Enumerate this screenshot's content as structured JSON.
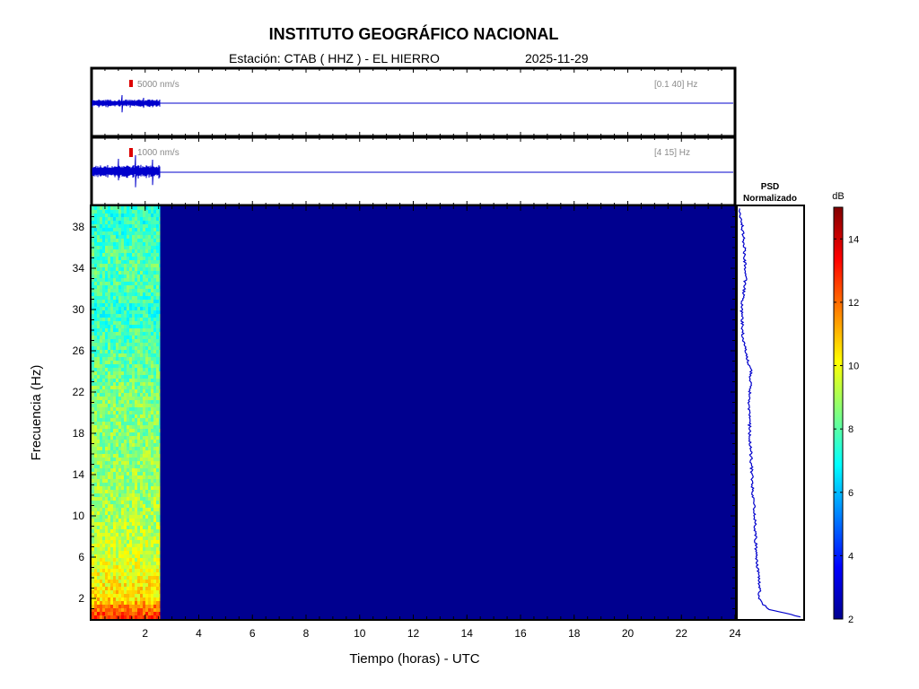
{
  "title": "INSTITUTO GEOGRÁFICO NACIONAL",
  "station_label": "Estación:  CTAB ( HHZ ) - EL HIERRO",
  "date": "2025-11-29",
  "colors": {
    "trace": "#0000cc",
    "frame": "#000000",
    "scale_marker": "#dd0000",
    "background_spectrogram": "#00008f"
  },
  "traces": [
    {
      "scale_label": "5000 nm/s",
      "band_label": "[0.1 40] Hz"
    },
    {
      "scale_label": "1000 nm/s",
      "band_label": "[4 15] Hz"
    }
  ],
  "psd_title_1": "PSD",
  "psd_title_2": "Normalizado",
  "colorbar_unit": "dB",
  "chart_data": {
    "type": "heatmap",
    "xlabel": "Tiempo (horas) - UTC",
    "ylabel": "Frecuencia  (Hz)",
    "xlim": [
      0,
      24
    ],
    "ylim": [
      0,
      40
    ],
    "x_ticks": [
      2,
      4,
      6,
      8,
      10,
      12,
      14,
      16,
      18,
      20,
      22,
      24
    ],
    "y_ticks": [
      2,
      6,
      10,
      14,
      18,
      22,
      26,
      30,
      34,
      38
    ],
    "data_end_hour": 2.55,
    "colorbar": {
      "min": 2,
      "max": 15,
      "ticks": [
        2,
        4,
        6,
        8,
        10,
        12,
        14
      ],
      "unit": "dB",
      "colormap": "jet"
    },
    "spectrogram_profile": [
      {
        "freq": 0.5,
        "db": 12.5
      },
      {
        "freq": 2,
        "db": 10.5
      },
      {
        "freq": 6,
        "db": 9.5
      },
      {
        "freq": 10,
        "db": 9.0
      },
      {
        "freq": 14,
        "db": 8.8
      },
      {
        "freq": 18,
        "db": 8.6
      },
      {
        "freq": 22,
        "db": 8.5
      },
      {
        "freq": 26,
        "db": 8.0
      },
      {
        "freq": 30,
        "db": 7.5
      },
      {
        "freq": 34,
        "db": 8.0
      },
      {
        "freq": 38,
        "db": 7.5
      }
    ],
    "empty_db": 2,
    "psd_normalized": [
      {
        "freq": 0.2,
        "value": 0.95
      },
      {
        "freq": 1.0,
        "value": 0.45
      },
      {
        "freq": 2.0,
        "value": 0.32
      },
      {
        "freq": 3.0,
        "value": 0.34
      },
      {
        "freq": 5.0,
        "value": 0.3
      },
      {
        "freq": 8.0,
        "value": 0.27
      },
      {
        "freq": 10.0,
        "value": 0.26
      },
      {
        "freq": 12.0,
        "value": 0.23
      },
      {
        "freq": 16.0,
        "value": 0.2
      },
      {
        "freq": 20.0,
        "value": 0.17
      },
      {
        "freq": 24.0,
        "value": 0.2
      },
      {
        "freq": 27.0,
        "value": 0.08
      },
      {
        "freq": 30.0,
        "value": 0.06
      },
      {
        "freq": 33.0,
        "value": 0.12
      },
      {
        "freq": 36.0,
        "value": 0.1
      },
      {
        "freq": 38.0,
        "value": 0.07
      },
      {
        "freq": 39.5,
        "value": 0.02
      }
    ]
  }
}
